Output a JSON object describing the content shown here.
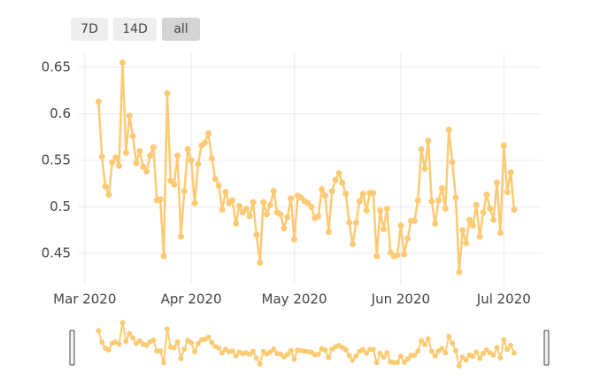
{
  "buttons": [
    "7D",
    "14D",
    "all"
  ],
  "chart_data": {
    "type": "line",
    "color": "#fdca74",
    "grid": true,
    "xlim": [
      "2020-02-28",
      "2020-07-12"
    ],
    "xticks": [
      {
        "value": "2020-03-01",
        "label": "Mar 2020"
      },
      {
        "value": "2020-04-01",
        "label": "Apr 2020"
      },
      {
        "value": "2020-05-01",
        "label": "May 2020"
      },
      {
        "value": "2020-06-01",
        "label": "Jun 2020"
      },
      {
        "value": "2020-07-01",
        "label": "Jul 2020"
      }
    ],
    "ylim": [
      0.4157,
      0.6652
    ],
    "yticks": [
      0.45,
      0.5,
      0.55,
      0.6,
      0.65
    ],
    "x": [
      "2020-03-05",
      "2020-03-06",
      "2020-03-07",
      "2020-03-08",
      "2020-03-09",
      "2020-03-10",
      "2020-03-11",
      "2020-03-12",
      "2020-03-13",
      "2020-03-14",
      "2020-03-15",
      "2020-03-16",
      "2020-03-17",
      "2020-03-18",
      "2020-03-19",
      "2020-03-20",
      "2020-03-21",
      "2020-03-22",
      "2020-03-23",
      "2020-03-24",
      "2020-03-25",
      "2020-03-26",
      "2020-03-27",
      "2020-03-28",
      "2020-03-29",
      "2020-03-30",
      "2020-03-31",
      "2020-04-01",
      "2020-04-02",
      "2020-04-03",
      "2020-04-04",
      "2020-04-05",
      "2020-04-06",
      "2020-04-07",
      "2020-04-08",
      "2020-04-09",
      "2020-04-10",
      "2020-04-11",
      "2020-04-12",
      "2020-04-13",
      "2020-04-14",
      "2020-04-15",
      "2020-04-16",
      "2020-04-17",
      "2020-04-18",
      "2020-04-19",
      "2020-04-20",
      "2020-04-21",
      "2020-04-22",
      "2020-04-23",
      "2020-04-24",
      "2020-04-25",
      "2020-04-26",
      "2020-04-27",
      "2020-04-28",
      "2020-04-29",
      "2020-04-30",
      "2020-05-01",
      "2020-05-02",
      "2020-05-03",
      "2020-05-04",
      "2020-05-05",
      "2020-05-06",
      "2020-05-07",
      "2020-05-08",
      "2020-05-09",
      "2020-05-10",
      "2020-05-11",
      "2020-05-12",
      "2020-05-13",
      "2020-05-14",
      "2020-05-15",
      "2020-05-16",
      "2020-05-17",
      "2020-05-18",
      "2020-05-19",
      "2020-05-20",
      "2020-05-21",
      "2020-05-22",
      "2020-05-23",
      "2020-05-24",
      "2020-05-25",
      "2020-05-26",
      "2020-05-27",
      "2020-05-28",
      "2020-05-29",
      "2020-05-30",
      "2020-05-31",
      "2020-06-01",
      "2020-06-02",
      "2020-06-03",
      "2020-06-04",
      "2020-06-05",
      "2020-06-06",
      "2020-06-07",
      "2020-06-08",
      "2020-06-09",
      "2020-06-10",
      "2020-06-11",
      "2020-06-12",
      "2020-06-13",
      "2020-06-14",
      "2020-06-15",
      "2020-06-16",
      "2020-06-17",
      "2020-06-18",
      "2020-06-19",
      "2020-06-20",
      "2020-06-21",
      "2020-06-22",
      "2020-06-23",
      "2020-06-24",
      "2020-06-25",
      "2020-06-26",
      "2020-06-27",
      "2020-06-28",
      "2020-06-29",
      "2020-06-30",
      "2020-07-01",
      "2020-07-02",
      "2020-07-03",
      "2020-07-04"
    ],
    "values": [
      0.613,
      0.554,
      0.522,
      0.513,
      0.548,
      0.553,
      0.544,
      0.655,
      0.558,
      0.598,
      0.576,
      0.547,
      0.56,
      0.543,
      0.538,
      0.555,
      0.564,
      0.507,
      0.508,
      0.447,
      0.622,
      0.528,
      0.524,
      0.555,
      0.468,
      0.517,
      0.562,
      0.55,
      0.504,
      0.546,
      0.566,
      0.569,
      0.579,
      0.552,
      0.53,
      0.523,
      0.497,
      0.516,
      0.504,
      0.507,
      0.482,
      0.501,
      0.494,
      0.498,
      0.49,
      0.505,
      0.47,
      0.44,
      0.505,
      0.492,
      0.502,
      0.517,
      0.494,
      0.492,
      0.477,
      0.489,
      0.509,
      0.465,
      0.512,
      0.51,
      0.506,
      0.504,
      0.5,
      0.488,
      0.49,
      0.519,
      0.512,
      0.473,
      0.517,
      0.529,
      0.536,
      0.526,
      0.514,
      0.483,
      0.46,
      0.483,
      0.506,
      0.514,
      0.496,
      0.515,
      0.515,
      0.447,
      0.496,
      0.476,
      0.498,
      0.451,
      0.447,
      0.448,
      0.48,
      0.449,
      0.466,
      0.485,
      0.485,
      0.507,
      0.562,
      0.541,
      0.571,
      0.506,
      0.482,
      0.507,
      0.52,
      0.498,
      0.583,
      0.548,
      0.51,
      0.43,
      0.475,
      0.461,
      0.486,
      0.48,
      0.502,
      0.468,
      0.494,
      0.513,
      0.498,
      0.486,
      0.526,
      0.472,
      0.566,
      0.516,
      0.537,
      0.497
    ]
  }
}
